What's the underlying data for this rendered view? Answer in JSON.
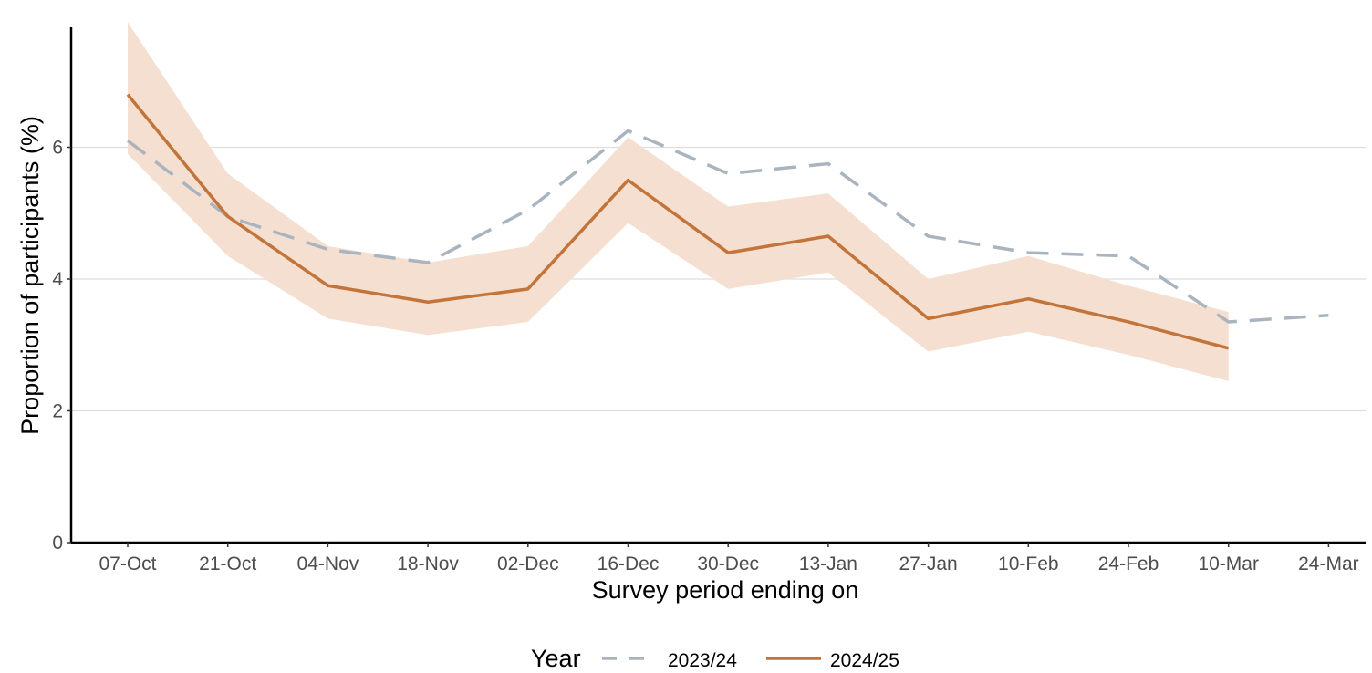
{
  "chart_data": {
    "type": "line",
    "title": "",
    "xlabel": "Survey period ending on",
    "ylabel": "Proportion of participants (%)",
    "categories": [
      "07-Oct",
      "21-Oct",
      "04-Nov",
      "18-Nov",
      "02-Dec",
      "16-Dec",
      "30-Dec",
      "13-Jan",
      "27-Jan",
      "10-Feb",
      "24-Feb",
      "10-Mar",
      "24-Mar"
    ],
    "yticks": [
      0,
      2,
      4,
      6
    ],
    "ylim": [
      0,
      7.9
    ],
    "grid": "horizontal",
    "legend": {
      "title": "Year",
      "position": "bottom"
    },
    "series": [
      {
        "name": "2023/24",
        "style": "dashed",
        "color": "#a9b4bf",
        "values": [
          6.1,
          4.95,
          4.45,
          4.25,
          5.05,
          6.25,
          5.6,
          5.75,
          4.65,
          4.4,
          4.35,
          3.35,
          3.45
        ]
      },
      {
        "name": "2024/25",
        "style": "solid",
        "color": "#c2743a",
        "values": [
          6.8,
          4.95,
          3.9,
          3.65,
          3.85,
          5.5,
          4.4,
          4.65,
          3.4,
          3.7,
          3.35,
          2.95,
          null
        ],
        "ci_lower": [
          5.9,
          4.35,
          3.4,
          3.15,
          3.35,
          4.85,
          3.85,
          4.1,
          2.9,
          3.2,
          2.85,
          2.45,
          null
        ],
        "ci_upper": [
          7.9,
          5.6,
          4.5,
          4.25,
          4.5,
          6.15,
          5.1,
          5.3,
          4.0,
          4.35,
          3.9,
          3.5,
          null
        ],
        "band_color": "#f5dfd0"
      }
    ]
  }
}
